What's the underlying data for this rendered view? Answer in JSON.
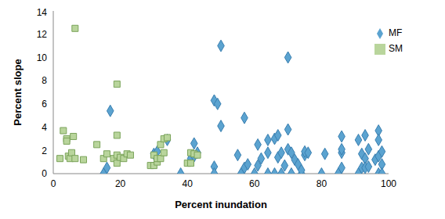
{
  "chart_data": {
    "type": "scatter",
    "x_label": "Percent inundation",
    "y_label": "Percent slope",
    "xlim": [
      0,
      100
    ],
    "xticks": [
      0,
      20,
      40,
      60,
      80,
      100
    ],
    "ylim": [
      0,
      14
    ],
    "yticks": [
      0,
      2,
      4,
      6,
      8,
      10,
      12,
      14
    ],
    "grid": false,
    "legend": "top-right",
    "series": [
      {
        "name": "MF",
        "color": "#5ba3d0",
        "marker": "diamond",
        "x": [
          15,
          16,
          17,
          30,
          31,
          34,
          38,
          41,
          42,
          42,
          43,
          48,
          48,
          48,
          49,
          50,
          50,
          55,
          56,
          57,
          57,
          58,
          60,
          61,
          61,
          62,
          64,
          64,
          64,
          66,
          66,
          67,
          67,
          68,
          68,
          69,
          70,
          70,
          70,
          71,
          71,
          72,
          73,
          74,
          74,
          75,
          75,
          76,
          80,
          81,
          85,
          86,
          86,
          86,
          86,
          91,
          91,
          92,
          92,
          93,
          93,
          93,
          94,
          94,
          96,
          97,
          97,
          97,
          97,
          98,
          98,
          98
        ],
        "y": [
          0,
          0.5,
          5.4,
          1.7,
          1.9,
          2.9,
          0,
          1.3,
          2.6,
          1.5,
          1.8,
          0.6,
          0,
          6.3,
          6.0,
          11,
          4.1,
          1.6,
          0,
          4.8,
          0.5,
          0.8,
          0,
          2.5,
          0.7,
          1.3,
          0,
          2.9,
          1.8,
          0,
          3.0,
          1.4,
          3.3,
          1.8,
          0,
          0.7,
          3.8,
          10,
          2.1,
          1.8,
          0,
          1.2,
          0.8,
          0,
          0.3,
          1.6,
          1.9,
          1.8,
          0,
          1.7,
          0,
          1.8,
          3.2,
          2.1,
          0.5,
          0,
          2.9,
          1.7,
          0.5,
          3.3,
          1.3,
          0.5,
          0.6,
          2.1,
          1.2,
          3.7,
          2.9,
          1.5,
          0,
          1.9,
          0.8,
          0
        ]
      },
      {
        "name": "SM",
        "color": "#b9d59c",
        "marker": "square",
        "x": [
          2,
          3,
          4,
          4,
          4.5,
          5,
          5.5,
          6,
          6.5,
          6.5,
          9,
          13,
          15,
          16,
          18,
          19,
          19,
          19,
          19,
          20,
          21,
          22,
          23,
          29,
          30,
          30,
          31,
          31,
          32,
          32,
          33,
          33,
          34,
          40,
          41,
          41,
          42,
          43
        ],
        "y": [
          1.3,
          3.7,
          3.0,
          2.8,
          1.5,
          1.3,
          1.8,
          3.2,
          12.5,
          1.3,
          1.2,
          2.5,
          1.3,
          1.7,
          1.3,
          0.9,
          3.3,
          7.7,
          1.6,
          1.4,
          1.3,
          1.7,
          1.6,
          0.7,
          1.6,
          0.7,
          1.0,
          1.3,
          1.3,
          2.5,
          1.8,
          3.0,
          3.1,
          0.9,
          1.8,
          0.9,
          1.7,
          1.6
        ]
      }
    ]
  }
}
